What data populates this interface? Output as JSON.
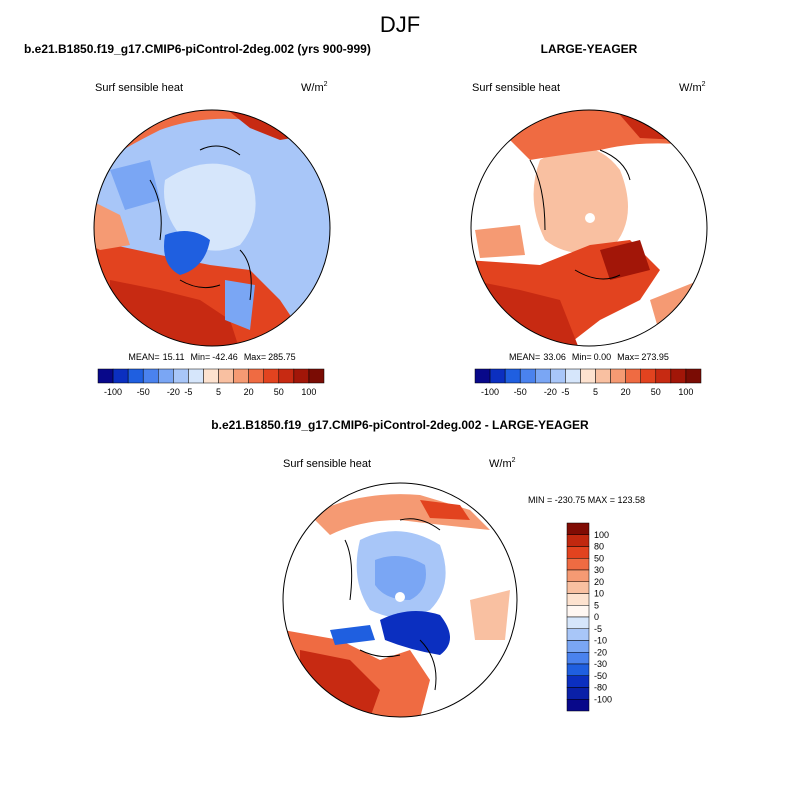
{
  "page_title": "DJF",
  "chart_data": [
    {
      "type": "heatmap",
      "projection": "north-polar-stereographic",
      "title": "b.e21.B1850.f19_g17.CMIP6-piControl-2deg.002 (yrs 900-999)",
      "variable": "Surf sensible heat",
      "units": "W/m",
      "units_exp": "2",
      "stats": {
        "mean_label": "MEAN=",
        "mean": "15.11",
        "min_label": "Min=",
        "min": "-42.46",
        "max_label": "Max=",
        "max": "285.75"
      },
      "colorbar": {
        "orientation": "horizontal",
        "levels": [
          "-100",
          "-50",
          "-20",
          "-5",
          "5",
          "20",
          "50",
          "100"
        ],
        "colors": [
          "#08088a",
          "#0b2fc0",
          "#1f5fe0",
          "#4a82ee",
          "#7aa6f4",
          "#a8c6f8",
          "#d6e6fb",
          "#fde2cf",
          "#f9c0a1",
          "#f59a73",
          "#ef6b42",
          "#e2431f",
          "#c72a12",
          "#a21608",
          "#7a0c04"
        ]
      }
    },
    {
      "type": "heatmap",
      "projection": "north-polar-stereographic",
      "title": "LARGE-YEAGER",
      "variable": "Surf sensible heat",
      "units": "W/m",
      "units_exp": "2",
      "stats": {
        "mean_label": "MEAN=",
        "mean": "33.06",
        "min_label": "Min=",
        "min": "0.00",
        "max_label": "Max=",
        "max": "273.95"
      },
      "colorbar": {
        "orientation": "horizontal",
        "levels": [
          "-100",
          "-50",
          "-20",
          "-5",
          "5",
          "20",
          "50",
          "100"
        ],
        "colors": [
          "#08088a",
          "#0b2fc0",
          "#1f5fe0",
          "#4a82ee",
          "#7aa6f4",
          "#a8c6f8",
          "#d6e6fb",
          "#fde2cf",
          "#f9c0a1",
          "#f59a73",
          "#ef6b42",
          "#e2431f",
          "#c72a12",
          "#a21608",
          "#7a0c04"
        ]
      }
    },
    {
      "type": "heatmap",
      "projection": "north-polar-stereographic",
      "title": "b.e21.B1850.f19_g17.CMIP6-piControl-2deg.002 - LARGE-YEAGER",
      "variable": "Surf sensible heat",
      "units": "W/m",
      "units_exp": "2",
      "range_label": "MIN = -230.75 MAX = 123.58",
      "colorbar": {
        "orientation": "vertical",
        "levels": [
          "100",
          "80",
          "50",
          "30",
          "20",
          "10",
          "5",
          "0",
          "-5",
          "-10",
          "-20",
          "-30",
          "-50",
          "-80",
          "-100"
        ],
        "colors": [
          "#800c04",
          "#c1280f",
          "#e2431f",
          "#ef6b42",
          "#f59a73",
          "#f9c0a1",
          "#fde2cf",
          "#fff7f2",
          "#d6e6fb",
          "#a8c6f8",
          "#7aa6f4",
          "#4a82ee",
          "#1f5fe0",
          "#0b2fc0",
          "#0a20a8",
          "#08088a"
        ]
      }
    }
  ]
}
